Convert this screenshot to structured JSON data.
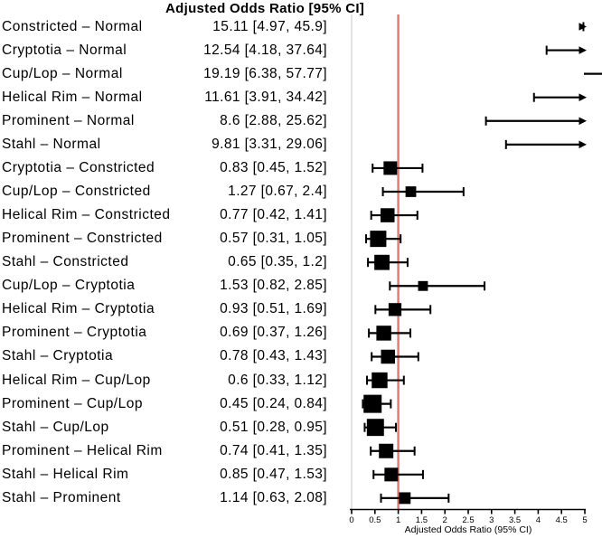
{
  "chart_data": {
    "type": "scatter",
    "subtype": "forest-plot",
    "title": "Adjusted Odds Ratio [95% CI]",
    "xlabel": "Adjusted Odds Ratio (95% CI)",
    "xlim": [
      0,
      5
    ],
    "xticks": [
      0,
      0.5,
      1,
      1.5,
      2,
      2.5,
      3,
      3.5,
      4,
      4.5,
      5
    ],
    "xtick_labels": [
      "0",
      "0.5",
      "1",
      "1.5",
      "2",
      "2.5",
      "3",
      "3.5",
      "4",
      "4.5",
      "5"
    ],
    "grid": false,
    "legend": false,
    "marker_color": "#000000",
    "reference_line": {
      "x": 1,
      "color": "#f0736c"
    },
    "zero_line": {
      "x": 0,
      "color": "#d8d8d8"
    },
    "rows": [
      {
        "label": "Constricted – Normal",
        "estimate_text": "15.11 [4.97, 45.9]",
        "or": 15.11,
        "lower": 4.97,
        "upper": 45.9
      },
      {
        "label": "Cryptotia – Normal",
        "estimate_text": "12.54 [4.18, 37.64]",
        "or": 12.54,
        "lower": 4.18,
        "upper": 37.64
      },
      {
        "label": "Cup/Lop – Normal",
        "estimate_text": "19.19 [6.38, 57.77]",
        "or": 19.19,
        "lower": 6.38,
        "upper": 57.77
      },
      {
        "label": "Helical Rim – Normal",
        "estimate_text": "11.61 [3.91, 34.42]",
        "or": 11.61,
        "lower": 3.91,
        "upper": 34.42
      },
      {
        "label": "Prominent – Normal",
        "estimate_text": "8.6 [2.88, 25.62]",
        "or": 8.6,
        "lower": 2.88,
        "upper": 25.62
      },
      {
        "label": "Stahl – Normal",
        "estimate_text": "9.81 [3.31, 29.06]",
        "or": 9.81,
        "lower": 3.31,
        "upper": 29.06
      },
      {
        "label": "Cryptotia – Constricted",
        "estimate_text": "0.83 [0.45, 1.52]",
        "or": 0.83,
        "lower": 0.45,
        "upper": 1.52
      },
      {
        "label": "Cup/Lop – Constricted",
        "estimate_text": "1.27 [0.67, 2.4]",
        "or": 1.27,
        "lower": 0.67,
        "upper": 2.4
      },
      {
        "label": "Helical Rim – Constricted",
        "estimate_text": "0.77 [0.42, 1.41]",
        "or": 0.77,
        "lower": 0.42,
        "upper": 1.41
      },
      {
        "label": "Prominent – Constricted",
        "estimate_text": "0.57 [0.31, 1.05]",
        "or": 0.57,
        "lower": 0.31,
        "upper": 1.05
      },
      {
        "label": "Stahl – Constricted",
        "estimate_text": "0.65 [0.35, 1.2]",
        "or": 0.65,
        "lower": 0.35,
        "upper": 1.2
      },
      {
        "label": "Cup/Lop – Cryptotia",
        "estimate_text": "1.53 [0.82, 2.85]",
        "or": 1.53,
        "lower": 0.82,
        "upper": 2.85
      },
      {
        "label": "Helical Rim – Cryptotia",
        "estimate_text": "0.93 [0.51, 1.69]",
        "or": 0.93,
        "lower": 0.51,
        "upper": 1.69
      },
      {
        "label": "Prominent – Cryptotia",
        "estimate_text": "0.69 [0.37, 1.26]",
        "or": 0.69,
        "lower": 0.37,
        "upper": 1.26
      },
      {
        "label": "Stahl – Cryptotia",
        "estimate_text": "0.78 [0.43, 1.43]",
        "or": 0.78,
        "lower": 0.43,
        "upper": 1.43
      },
      {
        "label": "Helical Rim – Cup/Lop",
        "estimate_text": "0.6 [0.33, 1.12]",
        "or": 0.6,
        "lower": 0.33,
        "upper": 1.12
      },
      {
        "label": "Prominent – Cup/Lop",
        "estimate_text": "0.45 [0.24, 0.84]",
        "or": 0.45,
        "lower": 0.24,
        "upper": 0.84
      },
      {
        "label": "Stahl – Cup/Lop",
        "estimate_text": "0.51 [0.28, 0.95]",
        "or": 0.51,
        "lower": 0.28,
        "upper": 0.95
      },
      {
        "label": "Prominent – Helical Rim",
        "estimate_text": "0.74 [0.41, 1.35]",
        "or": 0.74,
        "lower": 0.41,
        "upper": 1.35
      },
      {
        "label": "Stahl – Helical Rim",
        "estimate_text": "0.85 [0.47, 1.53]",
        "or": 0.85,
        "lower": 0.47,
        "upper": 1.53
      },
      {
        "label": "Stahl – Prominent",
        "estimate_text": "1.14 [0.63, 2.08]",
        "or": 1.14,
        "lower": 0.63,
        "upper": 2.08
      }
    ]
  }
}
